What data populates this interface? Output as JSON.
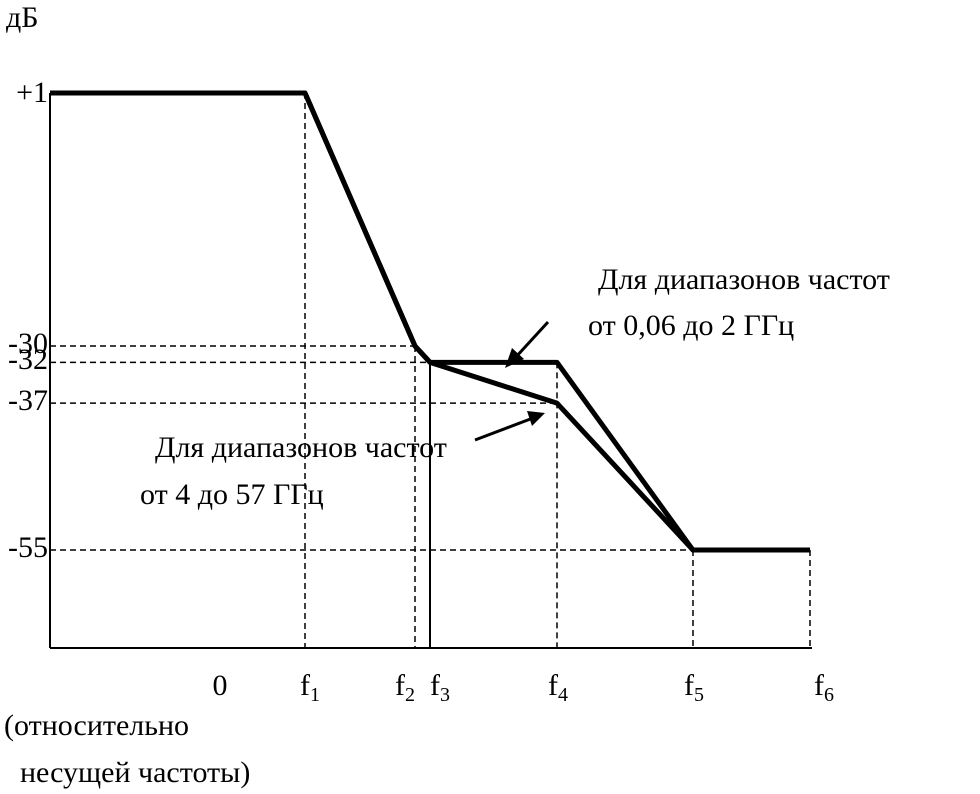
{
  "chart_data": {
    "type": "line",
    "ylabel": "дБ",
    "categories": [
      null,
      "0",
      "f1",
      "f2",
      "f3",
      "f4",
      "f5",
      "f6"
    ],
    "series": [
      {
        "name": "Для диапазонов частот от 0,06 до 2 ГГц",
        "color": "#000000",
        "values": [
          1,
          1,
          1,
          -30,
          -32,
          -32,
          -55,
          -55
        ]
      },
      {
        "name": "Для диапазонов частот от 4 до 57 ГГц",
        "color": "#000000",
        "values": [
          1,
          1,
          1,
          -30,
          -32,
          -37,
          -55,
          -55
        ]
      }
    ],
    "ylim": [
      -67,
      1
    ],
    "yticks": [
      {
        "value": 1,
        "label": "+1"
      },
      -30,
      -32,
      -37,
      -55
    ],
    "annotations": [
      "Для диапазонов частот",
      "от 0,06 до 2 ГГц",
      "Для диапазонов частот",
      "от 4 до 57 ГГц",
      "(относительно",
      "несущей частоты)"
    ]
  }
}
